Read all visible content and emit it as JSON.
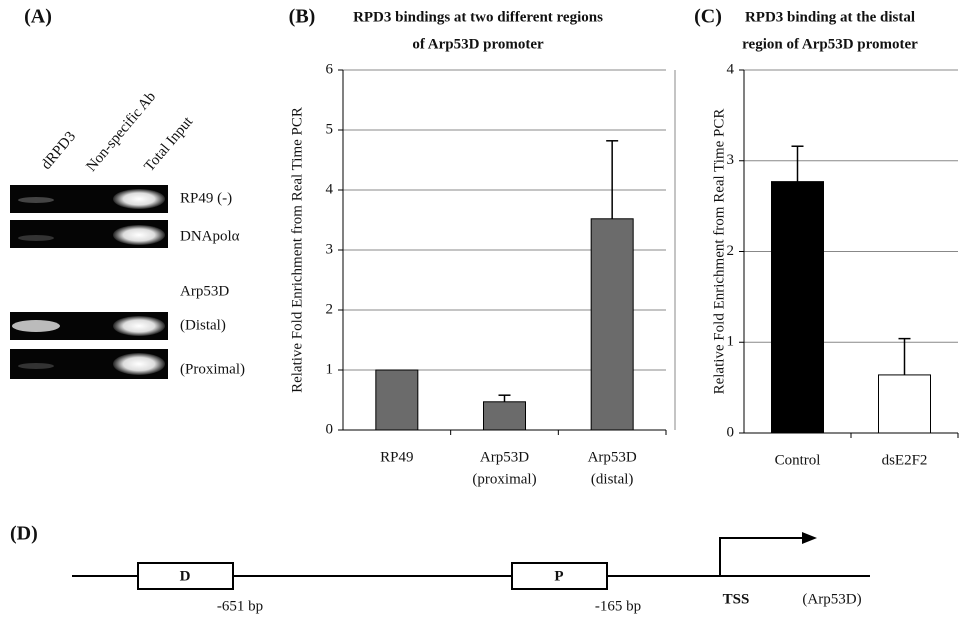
{
  "panel_a": {
    "label": "(A)",
    "lanes": [
      "dRPD3",
      "Non-specific Ab",
      "Total Input"
    ],
    "rows": [
      "RP49 (-)",
      "DNApolα",
      "Arp53D",
      "(Distal)",
      "(Proximal)"
    ]
  },
  "chart_data": [
    {
      "type": "bar",
      "panel": "(B)",
      "title": [
        "RPD3 bindings at two different regions",
        "of Arp53D promoter"
      ],
      "y_label": "Relative Fold Enrichment from Real Time PCR",
      "categories": [
        [
          "RP49"
        ],
        [
          "Arp53D",
          "(proximal)"
        ],
        [
          "Arp53D",
          "(distal)"
        ]
      ],
      "values": [
        1,
        0.47,
        3.52
      ],
      "errors": [
        null,
        0.11,
        1.3
      ],
      "color": "#6b6b6b",
      "ylim": [
        0,
        6
      ],
      "yticks": [
        0,
        1,
        2,
        3,
        4,
        5,
        6
      ],
      "grid": true
    },
    {
      "type": "bar",
      "panel": "(C)",
      "title": [
        "RPD3 binding at the distal",
        "region of Arp53D promoter"
      ],
      "y_label": "Relative Fold Enrichment from Real Time PCR",
      "categories": [
        [
          "Control"
        ],
        [
          "dsE2F2"
        ]
      ],
      "values": [
        2.77,
        0.64
      ],
      "errors": [
        0.39,
        0.4
      ],
      "colors": [
        "#000000",
        "#ffffff"
      ],
      "ylim": [
        0,
        4
      ],
      "yticks": [
        0,
        1,
        2,
        3,
        4
      ],
      "grid": true
    }
  ],
  "panel_d": {
    "label": "(D)",
    "boxes": [
      "D",
      "P"
    ],
    "positions": [
      "-651 bp",
      "-165 bp"
    ],
    "tss": "TSS",
    "gene": "(Arp53D)"
  }
}
